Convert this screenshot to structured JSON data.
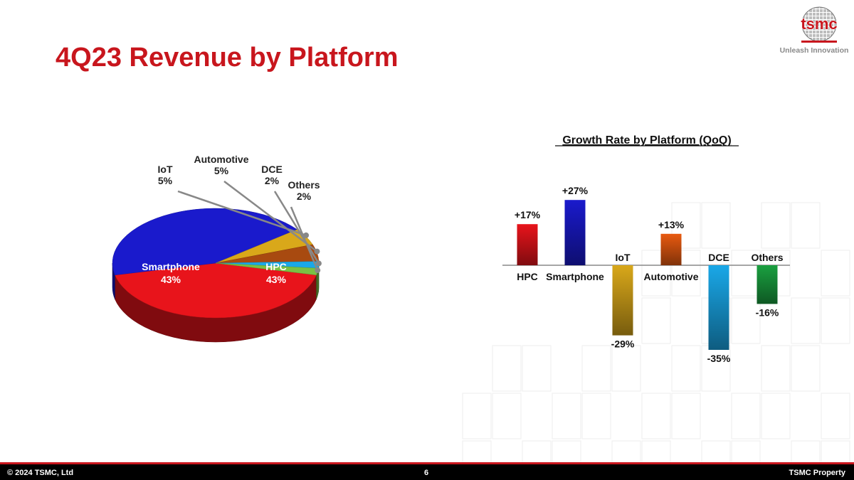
{
  "header": {
    "title": "4Q23 Revenue by Platform",
    "logo_text": "tsmc",
    "tagline": "Unleash Innovation"
  },
  "colors": {
    "title": "#c8161d",
    "hpc": "#e8141b",
    "smartphone": "#1a1acc",
    "iot": "#d9a81a",
    "automotive": "#a84a10",
    "dce": "#1aa8e8",
    "others": "#7ac143"
  },
  "chart_data": [
    {
      "type": "pie",
      "title": "",
      "slices": [
        {
          "label": "HPC",
          "pct_label": "43%",
          "value": 43,
          "color": "#e8141b"
        },
        {
          "label": "Smartphone",
          "pct_label": "43%",
          "value": 43,
          "color": "#1a1acc"
        },
        {
          "label": "IoT",
          "pct_label": "5%",
          "value": 5,
          "color": "#d9a81a"
        },
        {
          "label": "Automotive",
          "pct_label": "5%",
          "value": 5,
          "color": "#a84a10"
        },
        {
          "label": "DCE",
          "pct_label": "2%",
          "value": 2,
          "color": "#1aa8e8"
        },
        {
          "label": "Others",
          "pct_label": "2%",
          "value": 2,
          "color": "#7ac143"
        }
      ]
    },
    {
      "type": "bar",
      "title": "Growth Rate by Platform (QoQ)",
      "categories": [
        "HPC",
        "Smartphone",
        "IoT",
        "Automotive",
        "DCE",
        "Others"
      ],
      "values": [
        17,
        27,
        -29,
        13,
        -35,
        -16
      ],
      "value_labels": [
        "+17%",
        "+27%",
        "-29%",
        "+13%",
        "-35%",
        "-16%"
      ],
      "colors": [
        "#e8141b",
        "#1a1acc",
        "#d9a81a",
        "#e85a10",
        "#1aa8e8",
        "#1aa040"
      ],
      "ylim": [
        -35,
        27
      ],
      "xlabel": "",
      "ylabel": "",
      "grid": false
    }
  ],
  "footer": {
    "copyright": "© 2024 TSMC, Ltd",
    "page_number": "6",
    "property": "TSMC Property"
  }
}
